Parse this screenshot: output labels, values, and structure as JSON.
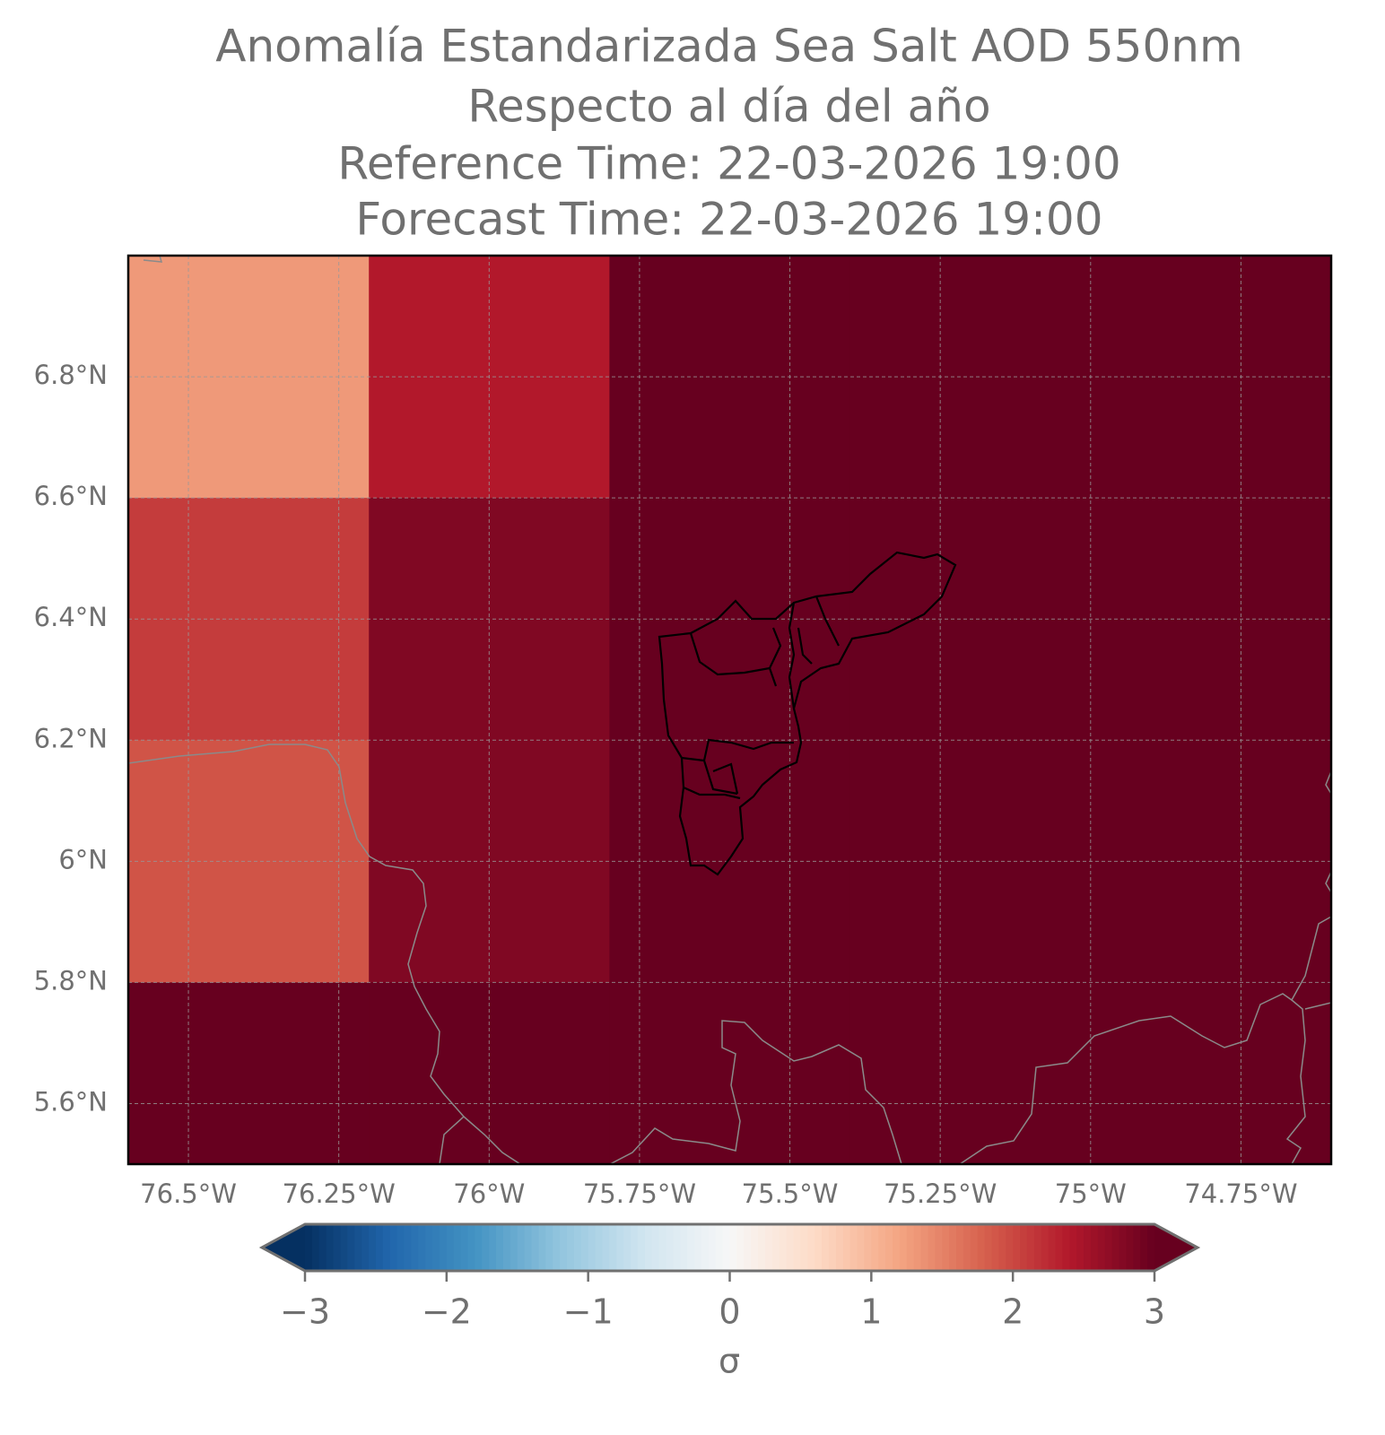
{
  "chart_data": {
    "type": "heatmap",
    "title": [
      "Anomalía Estandarizada Sea Salt AOD 550nm",
      "Respecto al día del año",
      "Reference Time: 22-03-2026 19:00",
      "Forecast Time: 22-03-2026 19:00"
    ],
    "lon_edges": [
      -76.6,
      -76.2,
      -75.8,
      -75.4,
      -75.0,
      -74.6
    ],
    "lat_edges": [
      7.0,
      6.6,
      6.2,
      5.8,
      5.4
    ],
    "values": [
      [
        1.3,
        2.4,
        3.2,
        3.2,
        3.2
      ],
      [
        2.1,
        2.8,
        3.2,
        3.2,
        3.2
      ],
      [
        1.9,
        2.8,
        3.2,
        3.2,
        3.2
      ],
      [
        3.2,
        3.2,
        3.2,
        3.2,
        3.2
      ]
    ],
    "xlim": [
      -76.6,
      -74.6
    ],
    "ylim": [
      5.5,
      7.0
    ],
    "xticks": [
      {
        "value": -76.5,
        "label": "76.5°W"
      },
      {
        "value": -76.25,
        "label": "76.25°W"
      },
      {
        "value": -76,
        "label": "76°W"
      },
      {
        "value": -75.75,
        "label": "75.75°W"
      },
      {
        "value": -75.5,
        "label": "75.5°W"
      },
      {
        "value": -75.25,
        "label": "75.25°W"
      },
      {
        "value": -75,
        "label": "75°W"
      },
      {
        "value": -74.75,
        "label": "74.75°W"
      }
    ],
    "yticks": [
      {
        "value": 5.6,
        "label": "5.6°N"
      },
      {
        "value": 5.8,
        "label": "5.8°N"
      },
      {
        "value": 6,
        "label": "6°N"
      },
      {
        "value": 6.2,
        "label": "6.2°N"
      },
      {
        "value": 6.4,
        "label": "6.4°N"
      },
      {
        "value": 6.6,
        "label": "6.6°N"
      },
      {
        "value": 6.8,
        "label": "6.8°N"
      }
    ],
    "grid": true,
    "colormap": [
      "#053061",
      "#2166ac",
      "#4393c3",
      "#92c5de",
      "#d1e5f0",
      "#f7f7f7",
      "#fddbc7",
      "#f4a582",
      "#d6604d",
      "#b2182b",
      "#67001f"
    ],
    "clim": [
      -3,
      3
    ],
    "cticks": [
      {
        "value": -3,
        "label": "−3"
      },
      {
        "value": -2,
        "label": "−2"
      },
      {
        "value": -1,
        "label": "−1"
      },
      0,
      1,
      2,
      3
    ],
    "colorbar_label": "σ"
  }
}
